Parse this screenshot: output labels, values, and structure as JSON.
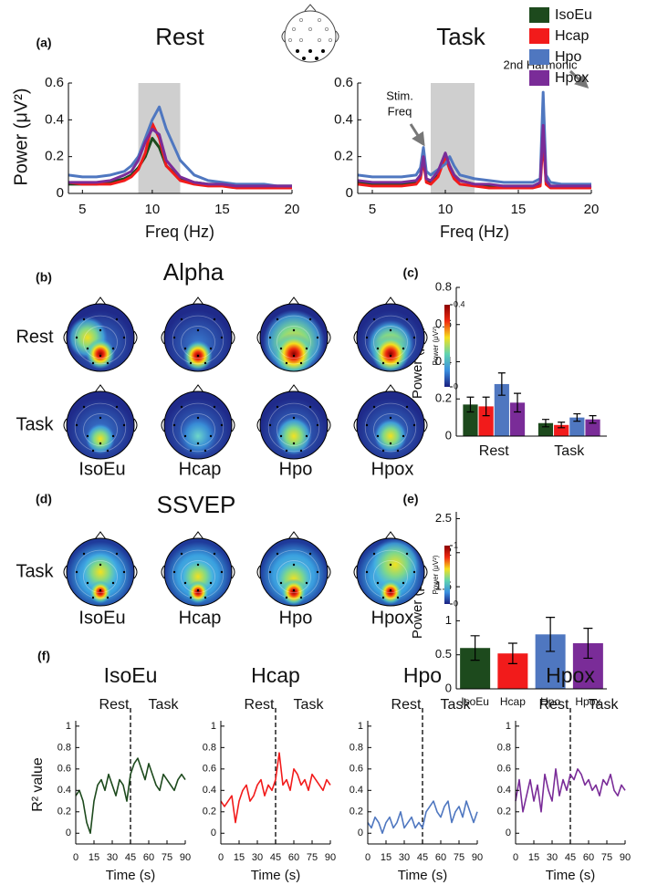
{
  "figure_labels": [
    "(a)",
    "(b)",
    "(c)",
    "(d)",
    "(e)",
    "(f)"
  ],
  "chart_data": [
    {
      "type": "line",
      "title": "Rest",
      "x_label": "Freq (Hz)",
      "y_label": "Power (μV²)",
      "x": [
        4,
        5,
        6,
        7,
        8,
        8.5,
        9,
        9.5,
        10,
        10.5,
        11,
        12,
        13,
        14,
        15,
        16,
        16.5,
        17,
        17.5,
        18,
        19,
        20
      ],
      "series": [
        {
          "name": "IsoEu",
          "color": "#1d4a1d",
          "values": [
            0.05,
            0.05,
            0.05,
            0.06,
            0.08,
            0.1,
            0.14,
            0.2,
            0.3,
            0.25,
            0.15,
            0.08,
            0.06,
            0.05,
            0.05,
            0.04,
            0.04,
            0.04,
            0.04,
            0.04,
            0.04,
            0.04
          ]
        },
        {
          "name": "Hcap",
          "color": "#f21b1b",
          "values": [
            0.06,
            0.05,
            0.05,
            0.05,
            0.07,
            0.09,
            0.13,
            0.22,
            0.38,
            0.3,
            0.15,
            0.07,
            0.05,
            0.04,
            0.04,
            0.03,
            0.03,
            0.03,
            0.03,
            0.03,
            0.03,
            0.03
          ]
        },
        {
          "name": "Hpo",
          "color": "#4f77c0",
          "values": [
            0.1,
            0.09,
            0.09,
            0.1,
            0.12,
            0.15,
            0.2,
            0.3,
            0.4,
            0.47,
            0.35,
            0.18,
            0.1,
            0.07,
            0.06,
            0.05,
            0.05,
            0.05,
            0.05,
            0.05,
            0.04,
            0.04
          ]
        },
        {
          "name": "Hpox",
          "color": "#7a2c98",
          "values": [
            0.06,
            0.06,
            0.06,
            0.07,
            0.1,
            0.12,
            0.18,
            0.28,
            0.35,
            0.32,
            0.18,
            0.09,
            0.06,
            0.05,
            0.05,
            0.04,
            0.04,
            0.04,
            0.04,
            0.04,
            0.04,
            0.04
          ]
        }
      ],
      "xlim": [
        4,
        20
      ],
      "xticks": [
        5,
        10,
        15,
        20
      ],
      "ylim": [
        0,
        0.6
      ],
      "yticks": [
        0,
        0.2,
        0.4,
        0.6
      ],
      "shaded_band": [
        9,
        12
      ]
    },
    {
      "type": "line",
      "title": "Task",
      "x_label": "Freq (Hz)",
      "x": [
        4,
        5,
        6,
        7,
        8,
        8.3,
        8.5,
        8.7,
        9,
        9.5,
        10,
        10.3,
        10.6,
        11,
        12,
        13,
        14,
        15,
        16,
        16.5,
        16.7,
        16.9,
        17.2,
        18,
        19,
        20
      ],
      "series": [
        {
          "name": "IsoEu",
          "color": "#1d4a1d",
          "values": [
            0.06,
            0.05,
            0.05,
            0.05,
            0.06,
            0.1,
            0.22,
            0.08,
            0.06,
            0.1,
            0.2,
            0.15,
            0.1,
            0.07,
            0.05,
            0.04,
            0.04,
            0.04,
            0.04,
            0.05,
            0.4,
            0.06,
            0.04,
            0.04,
            0.04,
            0.03
          ]
        },
        {
          "name": "Hcap",
          "color": "#f21b1b",
          "values": [
            0.05,
            0.04,
            0.04,
            0.04,
            0.05,
            0.08,
            0.18,
            0.06,
            0.05,
            0.09,
            0.2,
            0.13,
            0.08,
            0.05,
            0.04,
            0.03,
            0.03,
            0.03,
            0.03,
            0.04,
            0.3,
            0.05,
            0.03,
            0.03,
            0.03,
            0.03
          ]
        },
        {
          "name": "Hpo",
          "color": "#4f77c0",
          "values": [
            0.1,
            0.09,
            0.09,
            0.09,
            0.1,
            0.14,
            0.25,
            0.12,
            0.1,
            0.13,
            0.16,
            0.2,
            0.15,
            0.1,
            0.08,
            0.07,
            0.06,
            0.06,
            0.06,
            0.08,
            0.55,
            0.1,
            0.06,
            0.05,
            0.05,
            0.05
          ]
        },
        {
          "name": "Hpox",
          "color": "#7a2c98",
          "values": [
            0.07,
            0.06,
            0.06,
            0.06,
            0.07,
            0.1,
            0.2,
            0.08,
            0.07,
            0.12,
            0.22,
            0.15,
            0.1,
            0.07,
            0.05,
            0.05,
            0.04,
            0.04,
            0.04,
            0.06,
            0.37,
            0.07,
            0.04,
            0.04,
            0.04,
            0.04
          ]
        }
      ],
      "xlim": [
        4,
        20
      ],
      "xticks": [
        5,
        10,
        15,
        20
      ],
      "ylim": [
        0,
        0.6
      ],
      "yticks": [
        0,
        0.2,
        0.4,
        0.6
      ],
      "shaded_band": [
        9,
        12
      ],
      "annotations": [
        {
          "lines": [
            "Stim.",
            "Freq"
          ]
        },
        {
          "lines": [
            "2nd Harmonic"
          ]
        }
      ]
    },
    {
      "type": "bar",
      "y_label": "Power (μV²)",
      "categories": [
        "Rest",
        "Task"
      ],
      "series": [
        {
          "name": "IsoEu",
          "color": "#1d4a1d",
          "values": [
            0.17,
            0.07
          ],
          "errors": [
            0.04,
            0.02
          ]
        },
        {
          "name": "Hcap",
          "color": "#f21b1b",
          "values": [
            0.16,
            0.06
          ],
          "errors": [
            0.05,
            0.015
          ]
        },
        {
          "name": "Hpo",
          "color": "#4f77c0",
          "values": [
            0.28,
            0.1
          ],
          "errors": [
            0.06,
            0.02
          ]
        },
        {
          "name": "Hpox",
          "color": "#7a2c98",
          "values": [
            0.18,
            0.09
          ],
          "errors": [
            0.05,
            0.02
          ]
        }
      ],
      "ylim": [
        0,
        0.8
      ],
      "yticks": [
        0,
        0.2,
        0.4,
        0.6,
        0.8
      ]
    },
    {
      "type": "bar",
      "y_label": "Power (μV²)",
      "categories": [
        "IsoEu",
        "Hcap",
        "Hpo",
        "Hpox"
      ],
      "values": [
        0.6,
        0.52,
        0.8,
        0.67
      ],
      "errors": [
        0.18,
        0.15,
        0.25,
        0.22
      ],
      "colors": [
        "#1d4a1d",
        "#f21b1b",
        "#4f77c0",
        "#7a2c98"
      ],
      "ylim": [
        0,
        2.6
      ],
      "yticks": [
        0,
        0.5,
        1,
        1.5,
        2,
        2.5
      ]
    },
    {
      "type": "line",
      "title": "IsoEu",
      "subtitles": [
        "Rest",
        "Task"
      ],
      "x_label": "Time (s)",
      "y_label": "R² value",
      "x": [
        0,
        3,
        6,
        9,
        12,
        15,
        18,
        21,
        24,
        27,
        30,
        33,
        36,
        39,
        42,
        45,
        48,
        51,
        54,
        57,
        60,
        63,
        66,
        69,
        72,
        75,
        78,
        81,
        84,
        87,
        90
      ],
      "series": [
        {
          "color": "#1d4a1d",
          "values": [
            0.35,
            0.4,
            0.3,
            0.1,
            0.0,
            0.3,
            0.45,
            0.5,
            0.4,
            0.55,
            0.45,
            0.35,
            0.5,
            0.45,
            0.3,
            0.55,
            0.65,
            0.7,
            0.6,
            0.5,
            0.65,
            0.55,
            0.45,
            0.4,
            0.55,
            0.5,
            0.45,
            0.4,
            0.5,
            0.55,
            0.5
          ]
        }
      ],
      "xlim": [
        0,
        90
      ],
      "xticks": [
        0,
        15,
        30,
        45,
        60,
        75,
        90
      ],
      "ylim": [
        -0.1,
        1.05
      ],
      "yticks": [
        0,
        0.2,
        0.4,
        0.6,
        0.8,
        1
      ],
      "event_line": 45
    },
    {
      "type": "line",
      "title": "Hcap",
      "subtitles": [
        "Rest",
        "Task"
      ],
      "x_label": "Time (s)",
      "x": [
        0,
        3,
        6,
        9,
        12,
        15,
        18,
        21,
        24,
        27,
        30,
        33,
        36,
        39,
        42,
        45,
        48,
        51,
        54,
        57,
        60,
        63,
        66,
        69,
        72,
        75,
        78,
        81,
        84,
        87,
        90
      ],
      "series": [
        {
          "color": "#f21b1b",
          "values": [
            0.3,
            0.25,
            0.3,
            0.35,
            0.1,
            0.3,
            0.4,
            0.45,
            0.3,
            0.35,
            0.45,
            0.5,
            0.35,
            0.45,
            0.4,
            0.5,
            0.75,
            0.45,
            0.5,
            0.4,
            0.6,
            0.55,
            0.45,
            0.5,
            0.4,
            0.55,
            0.5,
            0.45,
            0.4,
            0.5,
            0.45
          ]
        }
      ],
      "xlim": [
        0,
        90
      ],
      "xticks": [
        0,
        15,
        30,
        45,
        60,
        75,
        90
      ],
      "ylim": [
        -0.1,
        1.05
      ],
      "yticks": [
        0,
        0.2,
        0.4,
        0.6,
        0.8,
        1
      ],
      "event_line": 45
    },
    {
      "type": "line",
      "title": "Hpo",
      "subtitles": [
        "Rest",
        "Task"
      ],
      "x_label": "Time (s)",
      "x": [
        0,
        3,
        6,
        9,
        12,
        15,
        18,
        21,
        24,
        27,
        30,
        33,
        36,
        39,
        42,
        45,
        48,
        51,
        54,
        57,
        60,
        63,
        66,
        69,
        72,
        75,
        78,
        81,
        84,
        87,
        90
      ],
      "series": [
        {
          "color": "#4f77c0",
          "values": [
            0.1,
            0.05,
            0.15,
            0.1,
            0.0,
            0.1,
            0.15,
            0.05,
            0.1,
            0.2,
            0.05,
            0.1,
            0.15,
            0.05,
            0.1,
            0.05,
            0.2,
            0.25,
            0.3,
            0.2,
            0.15,
            0.25,
            0.3,
            0.1,
            0.2,
            0.25,
            0.15,
            0.3,
            0.2,
            0.1,
            0.2
          ]
        }
      ],
      "xlim": [
        0,
        90
      ],
      "xticks": [
        0,
        15,
        30,
        45,
        60,
        75,
        90
      ],
      "ylim": [
        -0.1,
        1.05
      ],
      "yticks": [
        0,
        0.2,
        0.4,
        0.6,
        0.8,
        1
      ],
      "event_line": 45
    },
    {
      "type": "line",
      "title": "Hpox",
      "subtitles": [
        "Rest",
        "Task"
      ],
      "x_label": "Time (s)",
      "x": [
        0,
        3,
        6,
        9,
        12,
        15,
        18,
        21,
        24,
        27,
        30,
        33,
        36,
        39,
        42,
        45,
        48,
        51,
        54,
        57,
        60,
        63,
        66,
        69,
        72,
        75,
        78,
        81,
        84,
        87,
        90
      ],
      "series": [
        {
          "color": "#7a2c98",
          "values": [
            0.3,
            0.5,
            0.2,
            0.35,
            0.5,
            0.3,
            0.45,
            0.2,
            0.55,
            0.4,
            0.3,
            0.6,
            0.35,
            0.5,
            0.4,
            0.55,
            0.5,
            0.6,
            0.55,
            0.45,
            0.5,
            0.4,
            0.45,
            0.35,
            0.5,
            0.45,
            0.55,
            0.4,
            0.35,
            0.45,
            0.4
          ]
        }
      ],
      "xlim": [
        0,
        90
      ],
      "xticks": [
        0,
        15,
        30,
        45,
        60,
        75,
        90
      ],
      "ylim": [
        -0.1,
        1.05
      ],
      "yticks": [
        0,
        0.2,
        0.4,
        0.6,
        0.8,
        1
      ],
      "event_line": 45
    }
  ],
  "topomaps": [
    {
      "title": "Alpha",
      "rows": [
        "Rest",
        "Task"
      ],
      "columns": [
        "IsoEu",
        "Hcap",
        "Hpo",
        "Hpox"
      ],
      "colorbar_label": "Power (μV²)",
      "colorbar_ticks": [
        0,
        0.4
      ]
    },
    {
      "title": "SSVEP",
      "rows": [
        "Task"
      ],
      "columns": [
        "IsoEu",
        "Hcap",
        "Hpo",
        "Hpox"
      ],
      "colorbar_label": "Power (μV²)",
      "colorbar_ticks": [
        0,
        1
      ]
    }
  ]
}
